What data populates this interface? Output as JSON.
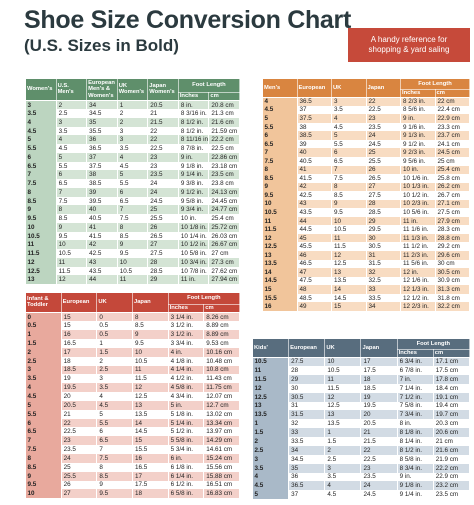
{
  "header": {
    "title": "Shoe Size Conversion Chart",
    "subtitle": "(U.S. Sizes in Bold)",
    "badge": [
      "A handy reference for",
      "shopping & yard saling"
    ]
  },
  "tables": [
    {
      "headers": [
        "Women's",
        "U.S. Men's",
        "European Men's & Women's",
        "UK Women's",
        "Japan Women's"
      ],
      "group": "Foot Length",
      "units": [
        "Inches",
        "cm"
      ],
      "rows": [
        [
          "3",
          "2",
          "34",
          "1",
          "20.5",
          "8 in.",
          "20.8 cm"
        ],
        [
          "3.5",
          "2.5",
          "34.5",
          "2",
          "21",
          "8 3/16 in.",
          "21.3 cm"
        ],
        [
          "4",
          "3",
          "35",
          "2",
          "21.5",
          "8 1/2 in.",
          "21.6 cm"
        ],
        [
          "4.5",
          "3.5",
          "35.5",
          "3",
          "22",
          "8 1/2 in.",
          "21.59 cm"
        ],
        [
          "5",
          "4",
          "36",
          "3",
          "22",
          "8 11/16 in.",
          "22.2 cm"
        ],
        [
          "5.5",
          "4.5",
          "36.5",
          "3.5",
          "22.5",
          "8 7/8 in.",
          "22.5 cm"
        ],
        [
          "6",
          "5",
          "37",
          "4",
          "23",
          "9 in.",
          "22.86 cm"
        ],
        [
          "6.5",
          "5.5",
          "37.5",
          "4.5",
          "23",
          "9 1/8 in.",
          "23.18 cm"
        ],
        [
          "7",
          "6",
          "38",
          "5",
          "23.5",
          "9 1/4 in.",
          "23.5 cm"
        ],
        [
          "7.5",
          "6.5",
          "38.5",
          "5.5",
          "24",
          "9 3/8 in.",
          "23.8 cm"
        ],
        [
          "8",
          "7",
          "39",
          "6",
          "24",
          "9 1/2 in.",
          "24.13 cm"
        ],
        [
          "8.5",
          "7.5",
          "39.5",
          "6.5",
          "24.5",
          "9 5/8 in.",
          "24.45 cm"
        ],
        [
          "9",
          "8",
          "40",
          "7",
          "25",
          "9 3/4 in.",
          "24.77 cm"
        ],
        [
          "9.5",
          "8.5",
          "40.5",
          "7.5",
          "25.5",
          "10 in.",
          "25.4 cm"
        ],
        [
          "10",
          "9",
          "41",
          "8",
          "26",
          "10 1/8 in.",
          "25.72 cm"
        ],
        [
          "10.5",
          "9.5",
          "41.5",
          "8.5",
          "26.5",
          "10 1/4 in.",
          "26.03 cm"
        ],
        [
          "11",
          "10",
          "42",
          "9",
          "27",
          "10 1/2 in.",
          "26.67 cm"
        ],
        [
          "11.5",
          "10.5",
          "42.5",
          "9.5",
          "27.5",
          "10 5/8 in.",
          "27 cm"
        ],
        [
          "12",
          "11",
          "43",
          "10",
          "28",
          "10 3/4 in.",
          "27.3 cm"
        ],
        [
          "12.5",
          "11.5",
          "43.5",
          "10.5",
          "28.5",
          "10 7/8 in.",
          "27.62 cm"
        ],
        [
          "13",
          "12",
          "44",
          "11",
          "29",
          "11 in.",
          "27.94 cm"
        ]
      ]
    },
    {
      "headers": [
        "Men's",
        "European",
        "UK",
        "Japan"
      ],
      "group": "Foot Length",
      "units": [
        "Inches",
        "cm"
      ],
      "rows": [
        [
          "4",
          "36.5",
          "3",
          "22",
          "8 2/3 in.",
          "22 cm"
        ],
        [
          "4.5",
          "37",
          "3.5",
          "22.5",
          "8 5/6 in.",
          "22.4 cm"
        ],
        [
          "5",
          "37.5",
          "4",
          "23",
          "9 in.",
          "22.9 cm"
        ],
        [
          "5.5",
          "38",
          "4.5",
          "23.5",
          "9 1/6 in.",
          "23.3 cm"
        ],
        [
          "6",
          "38.5",
          "5",
          "24",
          "9 1/3 in.",
          "23.7 cm"
        ],
        [
          "6.5",
          "39",
          "5.5",
          "24.5",
          "9 1/2 in.",
          "24.1 cm"
        ],
        [
          "7",
          "40",
          "6",
          "25",
          "9 2/3 in.",
          "24.5 cm"
        ],
        [
          "7.5",
          "40.5",
          "6.5",
          "25.5",
          "9 5/6 in.",
          "25 cm"
        ],
        [
          "8",
          "41",
          "7",
          "26",
          "10 in.",
          "25.4 cm"
        ],
        [
          "8.5",
          "41.5",
          "7.5",
          "26.5",
          "10 1/6 in.",
          "25.8 cm"
        ],
        [
          "9",
          "42",
          "8",
          "27",
          "10 1/3 in.",
          "26.2 cm"
        ],
        [
          "9.5",
          "42.5",
          "8.5",
          "27.5",
          "10 1/2 in.",
          "26.7 cm"
        ],
        [
          "10",
          "43",
          "9",
          "28",
          "10 2/3 in.",
          "27.1 cm"
        ],
        [
          "10.5",
          "43.5",
          "9.5",
          "28.5",
          "10 5/6 in.",
          "27.5 cm"
        ],
        [
          "11",
          "44",
          "10",
          "29",
          "11 in.",
          "27.9 cm"
        ],
        [
          "11.5",
          "44.5",
          "10.5",
          "29.5",
          "11 1/6 in.",
          "28.3 cm"
        ],
        [
          "12",
          "45",
          "11",
          "30",
          "11 1/3 in.",
          "28.8 cm"
        ],
        [
          "12.5",
          "45.5",
          "11.5",
          "30.5",
          "11 1/2 in.",
          "29.2 cm"
        ],
        [
          "13",
          "46",
          "12",
          "31",
          "11 2/3 in.",
          "29.6 cm"
        ],
        [
          "13.5",
          "46.5",
          "12.5",
          "31.5",
          "11 5/6 in.",
          "30 cm"
        ],
        [
          "14",
          "47",
          "13",
          "32",
          "12 in.",
          "30.5 cm"
        ],
        [
          "14.5",
          "47.5",
          "13.5",
          "32.5",
          "12 1/6 in.",
          "30.9 cm"
        ],
        [
          "15",
          "48",
          "14",
          "33",
          "12 1/3 in.",
          "31.3 cm"
        ],
        [
          "15.5",
          "48.5",
          "14.5",
          "33.5",
          "12 1/2 in.",
          "31.8 cm"
        ],
        [
          "16",
          "49",
          "15",
          "34",
          "12 2/3 in.",
          "32.2 cm"
        ]
      ]
    },
    {
      "headers": [
        "Infant & Toddler",
        "European",
        "UK",
        "Japan"
      ],
      "group": "Foot Length",
      "units": [
        "Inches",
        "cm"
      ],
      "rows": [
        [
          "0",
          "15",
          "0",
          "8",
          "3 1/4 in.",
          "8.26 cm"
        ],
        [
          "0.5",
          "15",
          "0.5",
          "8.5",
          "3 1/2 in.",
          "8.89 cm"
        ],
        [
          "1",
          "16",
          "0.5",
          "9",
          "3 1/2 in.",
          "8.89 cm"
        ],
        [
          "1.5",
          "16.5",
          "1",
          "9.5",
          "3 3/4 in.",
          "9.53 cm"
        ],
        [
          "2",
          "17",
          "1.5",
          "10",
          "4 in.",
          "10.16 cm"
        ],
        [
          "2.5",
          "18",
          "2",
          "10.5",
          "4 1/8 in.",
          "10.48 cm"
        ],
        [
          "3",
          "18.5",
          "2.5",
          "11",
          "4 1/4 in.",
          "10.8 cm"
        ],
        [
          "3.5",
          "19",
          "3",
          "11.5",
          "4 1/2 in.",
          "11.43 cm"
        ],
        [
          "4",
          "19.5",
          "3.5",
          "12",
          "4 5/8 in.",
          "11.75 cm"
        ],
        [
          "4.5",
          "20",
          "4",
          "12.5",
          "4 3/4 in.",
          "12.07 cm"
        ],
        [
          "5",
          "20.5",
          "4.5",
          "13",
          "5 in.",
          "12.7 cm"
        ],
        [
          "5.5",
          "21",
          "5",
          "13.5",
          "5 1/8 in.",
          "13.02 cm"
        ],
        [
          "6",
          "22",
          "5.5",
          "14",
          "5 1/4 in.",
          "13.34 cm"
        ],
        [
          "6.5",
          "22.5",
          "6",
          "14.5",
          "5 1/2 in.",
          "13.97 cm"
        ],
        [
          "7",
          "23",
          "6.5",
          "15",
          "5 5/8 in.",
          "14.29 cm"
        ],
        [
          "7.5",
          "23.5",
          "7",
          "15.5",
          "5 3/4 in.",
          "14.61 cm"
        ],
        [
          "8",
          "24",
          "7.5",
          "16",
          "6 in.",
          "15.24 cm"
        ],
        [
          "8.5",
          "25",
          "8",
          "16.5",
          "6 1/8 in.",
          "15.56 cm"
        ],
        [
          "9",
          "25.5",
          "8.5",
          "17",
          "6 1/4 in.",
          "15.88 cm"
        ],
        [
          "9.5",
          "26",
          "9",
          "17.5",
          "6 1/2 in.",
          "16.51 cm"
        ],
        [
          "10",
          "27",
          "9.5",
          "18",
          "6 5/8 in.",
          "16.83 cm"
        ]
      ]
    },
    {
      "headers": [
        "Kids'",
        "European",
        "UK",
        "Japan"
      ],
      "group": "Foot Length",
      "units": [
        "Inches",
        "cm"
      ],
      "rows": [
        [
          "10.5",
          "27.5",
          "10",
          "17",
          "6 3/4 in.",
          "17.1 cm"
        ],
        [
          "11",
          "28",
          "10.5",
          "17.5",
          "6 7/8 in.",
          "17.5 cm"
        ],
        [
          "11.5",
          "29",
          "11",
          "18",
          "7 in.",
          "17.8 cm"
        ],
        [
          "12",
          "30",
          "11.5",
          "18.5",
          "7 1/4 in.",
          "18.4 cm"
        ],
        [
          "12.5",
          "30.5",
          "12",
          "19",
          "7 1/2 in.",
          "19.1 cm"
        ],
        [
          "13",
          "31",
          "12.5",
          "19.5",
          "7 5/8 in.",
          "19.4 cm"
        ],
        [
          "13.5",
          "31.5",
          "13",
          "20",
          "7 3/4 in.",
          "19.7 cm"
        ],
        [
          "1",
          "32",
          "13.5",
          "20.5",
          "8 in.",
          "20.3 cm"
        ],
        [
          "1.5",
          "33",
          "1",
          "21",
          "8 1/8 in.",
          "20.6 cm"
        ],
        [
          "2",
          "33.5",
          "1.5",
          "21.5",
          "8 1/4 in.",
          "21 cm"
        ],
        [
          "2.5",
          "34",
          "2",
          "22",
          "8 1/2 in.",
          "21.6 cm"
        ],
        [
          "3",
          "34.5",
          "2.5",
          "22.5",
          "8 5/8 in.",
          "21.9 cm"
        ],
        [
          "3.5",
          "35",
          "3",
          "23",
          "8 3/4 in.",
          "22.2 cm"
        ],
        [
          "4",
          "36",
          "3.5",
          "23.5",
          "9 in.",
          "22.9 cm"
        ],
        [
          "4.5",
          "36.5",
          "4",
          "24",
          "9 1/8 in.",
          "23.2 cm"
        ],
        [
          "5",
          "37",
          "4.5",
          "24.5",
          "9 1/4 in.",
          "23.5 cm"
        ]
      ]
    }
  ]
}
